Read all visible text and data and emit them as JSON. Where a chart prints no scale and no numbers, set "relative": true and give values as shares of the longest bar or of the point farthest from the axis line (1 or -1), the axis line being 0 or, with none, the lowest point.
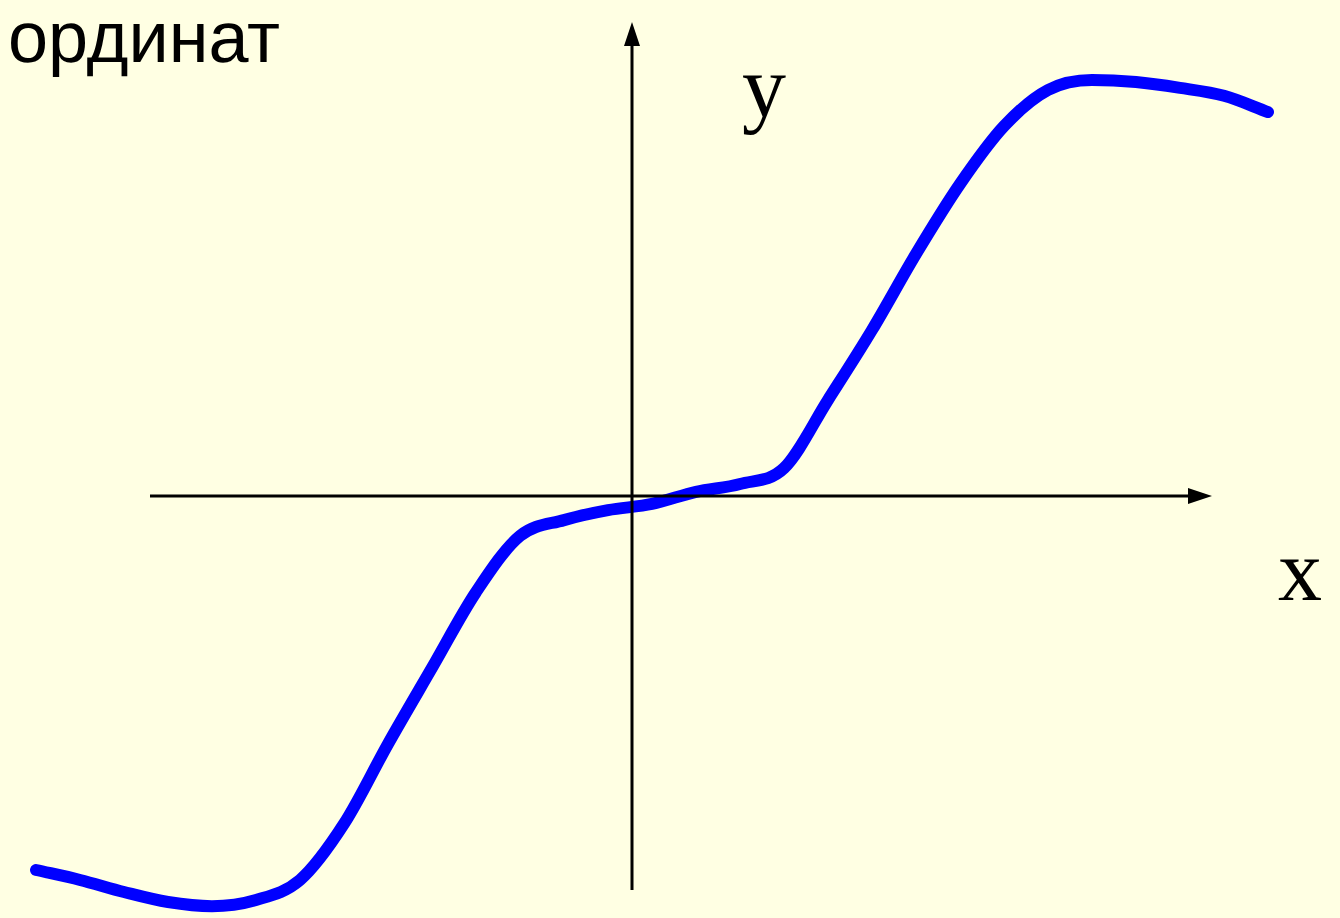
{
  "chart_data": {
    "type": "line",
    "title": "ординат",
    "xlabel": "x",
    "ylabel": "y",
    "relative": true,
    "categories": [
      null,
      null,
      null,
      null,
      null,
      null,
      null,
      null,
      null,
      null,
      null,
      null,
      null,
      null,
      null,
      null,
      null,
      null,
      null,
      null,
      null,
      null,
      null,
      null,
      null,
      null,
      null,
      null,
      null
    ],
    "series": [
      {
        "color": "#0000ff",
        "values": [
          -0.899,
          -0.923,
          -0.952,
          -0.976,
          -0.986,
          -0.971,
          -0.923,
          -0.788,
          -0.596,
          -0.413,
          -0.231,
          -0.096,
          -0.058,
          -0.034,
          -0.019,
          0.01,
          0.029,
          0.067,
          0.231,
          0.399,
          0.582,
          0.75,
          0.889,
          0.976,
          1.0,
          0.995,
          0.981,
          0.962,
          0.923
        ]
      }
    ]
  }
}
